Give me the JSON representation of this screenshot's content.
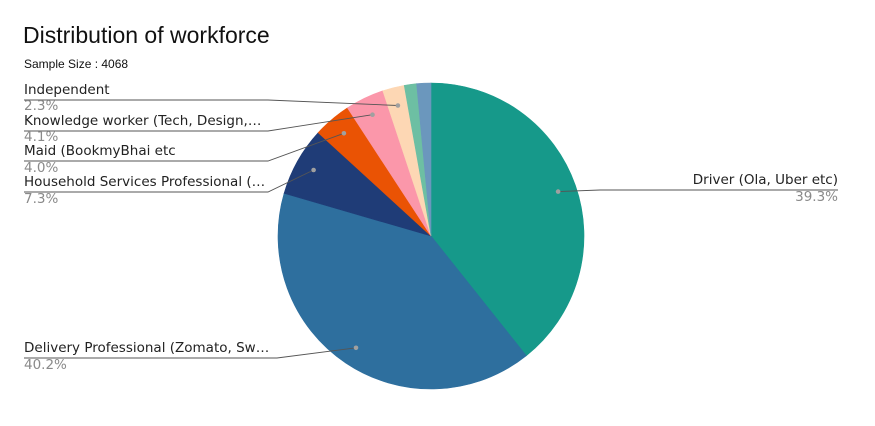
{
  "chart_data": {
    "type": "pie",
    "title": "Distribution of workforce",
    "subtitle": "Sample Size : 4068",
    "slices": [
      {
        "label": "Driver (Ola, Uber etc)",
        "pct_label": "39.3%",
        "value": 39.3,
        "color": "#16998a",
        "callout": true,
        "side": "right"
      },
      {
        "label": "Delivery Professional (Zomato, Sw…",
        "pct_label": "40.2%",
        "value": 40.2,
        "color": "#2e6f9e",
        "callout": true,
        "side": "left"
      },
      {
        "label": "Household Services Professional (…",
        "pct_label": "7.3%",
        "value": 7.3,
        "color": "#1f3c77",
        "callout": true,
        "side": "left"
      },
      {
        "label": "Maid (BookmyBhai etc",
        "pct_label": "4.0%",
        "value": 4.0,
        "color": "#ea5304",
        "callout": true,
        "side": "left"
      },
      {
        "label": "Knowledge worker (Tech, Design,…",
        "pct_label": "4.1%",
        "value": 4.1,
        "color": "#fb97aa",
        "callout": true,
        "side": "left"
      },
      {
        "label": "Independent",
        "pct_label": "2.3%",
        "value": 2.3,
        "color": "#fdd7b4",
        "callout": true,
        "side": "left"
      },
      {
        "label": "",
        "pct_label": "",
        "value": 1.3,
        "color": "#6dbfa3",
        "callout": false,
        "side": "left"
      },
      {
        "label": "",
        "pct_label": "",
        "value": 1.5,
        "color": "#6b97bd",
        "callout": false,
        "side": "left"
      }
    ]
  }
}
